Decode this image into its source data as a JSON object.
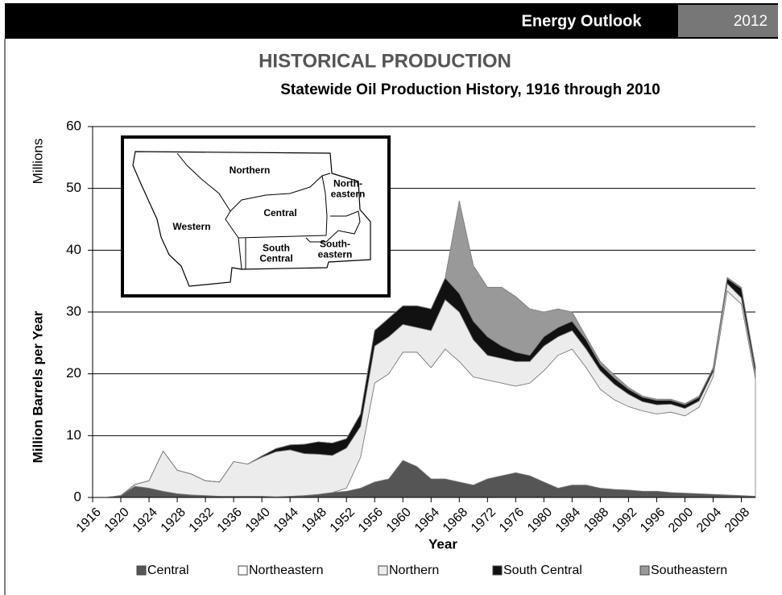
{
  "header": {
    "title": "Energy Outlook",
    "year": "2012"
  },
  "map": {
    "labels": [
      [
        "Northern"
      ],
      [
        "North-",
        "eastern"
      ],
      [
        "Western"
      ],
      [
        "Central"
      ],
      [
        "South",
        "Central"
      ],
      [
        "South-",
        "eastern"
      ]
    ]
  },
  "chart_data": {
    "type": "stacked_area",
    "title": "HISTORICAL PRODUCTION",
    "subtitle": "Statewide Oil Production History, 1916 through 2010",
    "y_unit_label": "Millions",
    "ylabel": "Million Barrels per Year",
    "xlabel": "Year",
    "x": [
      1916,
      1918,
      1920,
      1922,
      1924,
      1926,
      1928,
      1930,
      1932,
      1934,
      1936,
      1938,
      1940,
      1942,
      1944,
      1946,
      1948,
      1950,
      1952,
      1954,
      1956,
      1958,
      1960,
      1962,
      1964,
      1966,
      1968,
      1970,
      1972,
      1974,
      1976,
      1978,
      1980,
      1982,
      1984,
      1986,
      1988,
      1990,
      1992,
      1994,
      1996,
      1998,
      2000,
      2002,
      2004,
      2006,
      2008,
      2010
    ],
    "series": [
      {
        "name": "Central",
        "color": "#555555",
        "values": [
          0,
          0,
          0.3,
          1.8,
          1.5,
          1.0,
          0.6,
          0.4,
          0.3,
          0.2,
          0.2,
          0.2,
          0.2,
          0.1,
          0.2,
          0.3,
          0.5,
          0.8,
          1.0,
          1.5,
          2.5,
          3,
          6,
          5,
          3,
          3,
          2.5,
          2,
          3,
          3.5,
          4,
          3.5,
          2.5,
          1.5,
          2,
          2,
          1.5,
          1.3,
          1.2,
          1,
          1,
          0.8,
          0.7,
          0.6,
          0.5,
          0.4,
          0.3,
          0.2
        ]
      },
      {
        "name": "Northeastern",
        "color": "#ffffff",
        "values": [
          0,
          0,
          0,
          0,
          0,
          0,
          0,
          0,
          0,
          0,
          0,
          0,
          0,
          0,
          0,
          0,
          0,
          0,
          0.5,
          5,
          16,
          17,
          17.5,
          18.5,
          18,
          21,
          19.5,
          17.5,
          16,
          15,
          14,
          15,
          18,
          21.5,
          22,
          19,
          16,
          14.5,
          13.5,
          13,
          12.5,
          13,
          12.5,
          14,
          19,
          33,
          31,
          19
        ]
      },
      {
        "name": "Northern",
        "color": "#ececec",
        "values": [
          0,
          0,
          0,
          0.3,
          1.2,
          6.5,
          3.8,
          3.4,
          2.4,
          2.3,
          5.6,
          5.2,
          6.3,
          7.3,
          7.5,
          6.8,
          6.5,
          6.0,
          6.5,
          5,
          6,
          6,
          4.5,
          4,
          6,
          8,
          8,
          6,
          4,
          4,
          4,
          3.5,
          4,
          3,
          3,
          3,
          3,
          2.5,
          2,
          1.5,
          1.5,
          1.3,
          1.2,
          1.0,
          0.8,
          1.2,
          1.0,
          0.8
        ]
      },
      {
        "name": "South Central",
        "color": "#111111",
        "values": [
          0,
          0,
          0,
          0,
          0,
          0,
          0,
          0,
          0,
          0,
          0,
          0,
          0.2,
          0.5,
          0.8,
          1.5,
          2.0,
          2.0,
          1.5,
          2,
          2.5,
          3,
          3,
          3.5,
          3.5,
          3.5,
          3,
          3,
          3,
          2,
          1.5,
          1,
          1.5,
          1.5,
          1.5,
          1.5,
          1,
          1,
          0.8,
          0.7,
          0.7,
          0.6,
          0.6,
          0.6,
          0.5,
          0.8,
          1.5,
          1.0
        ]
      },
      {
        "name": "Southeastern",
        "color": "#999999",
        "values": [
          0,
          0,
          0,
          0,
          0,
          0,
          0,
          0,
          0,
          0,
          0,
          0,
          0,
          0,
          0,
          0,
          0,
          0,
          0,
          0,
          0,
          0,
          0,
          0,
          0,
          0,
          15,
          9,
          8,
          9.5,
          9,
          7.5,
          4,
          3,
          1.5,
          0.5,
          0.5,
          0.5,
          0.3,
          0.2,
          0.2,
          0.2,
          0.2,
          0.2,
          0.2,
          0.2,
          0.2,
          0.2
        ]
      }
    ],
    "xlim": [
      1916,
      2010
    ],
    "xticks": [
      1916,
      1920,
      1924,
      1928,
      1932,
      1936,
      1940,
      1944,
      1948,
      1952,
      1956,
      1960,
      1964,
      1968,
      1972,
      1976,
      1980,
      1984,
      1988,
      1992,
      1996,
      2000,
      2004,
      2008
    ],
    "ylim": [
      0,
      60
    ],
    "yticks": [
      0,
      10,
      20,
      30,
      40,
      50,
      60
    ],
    "grid": true,
    "legend": "bottom"
  }
}
